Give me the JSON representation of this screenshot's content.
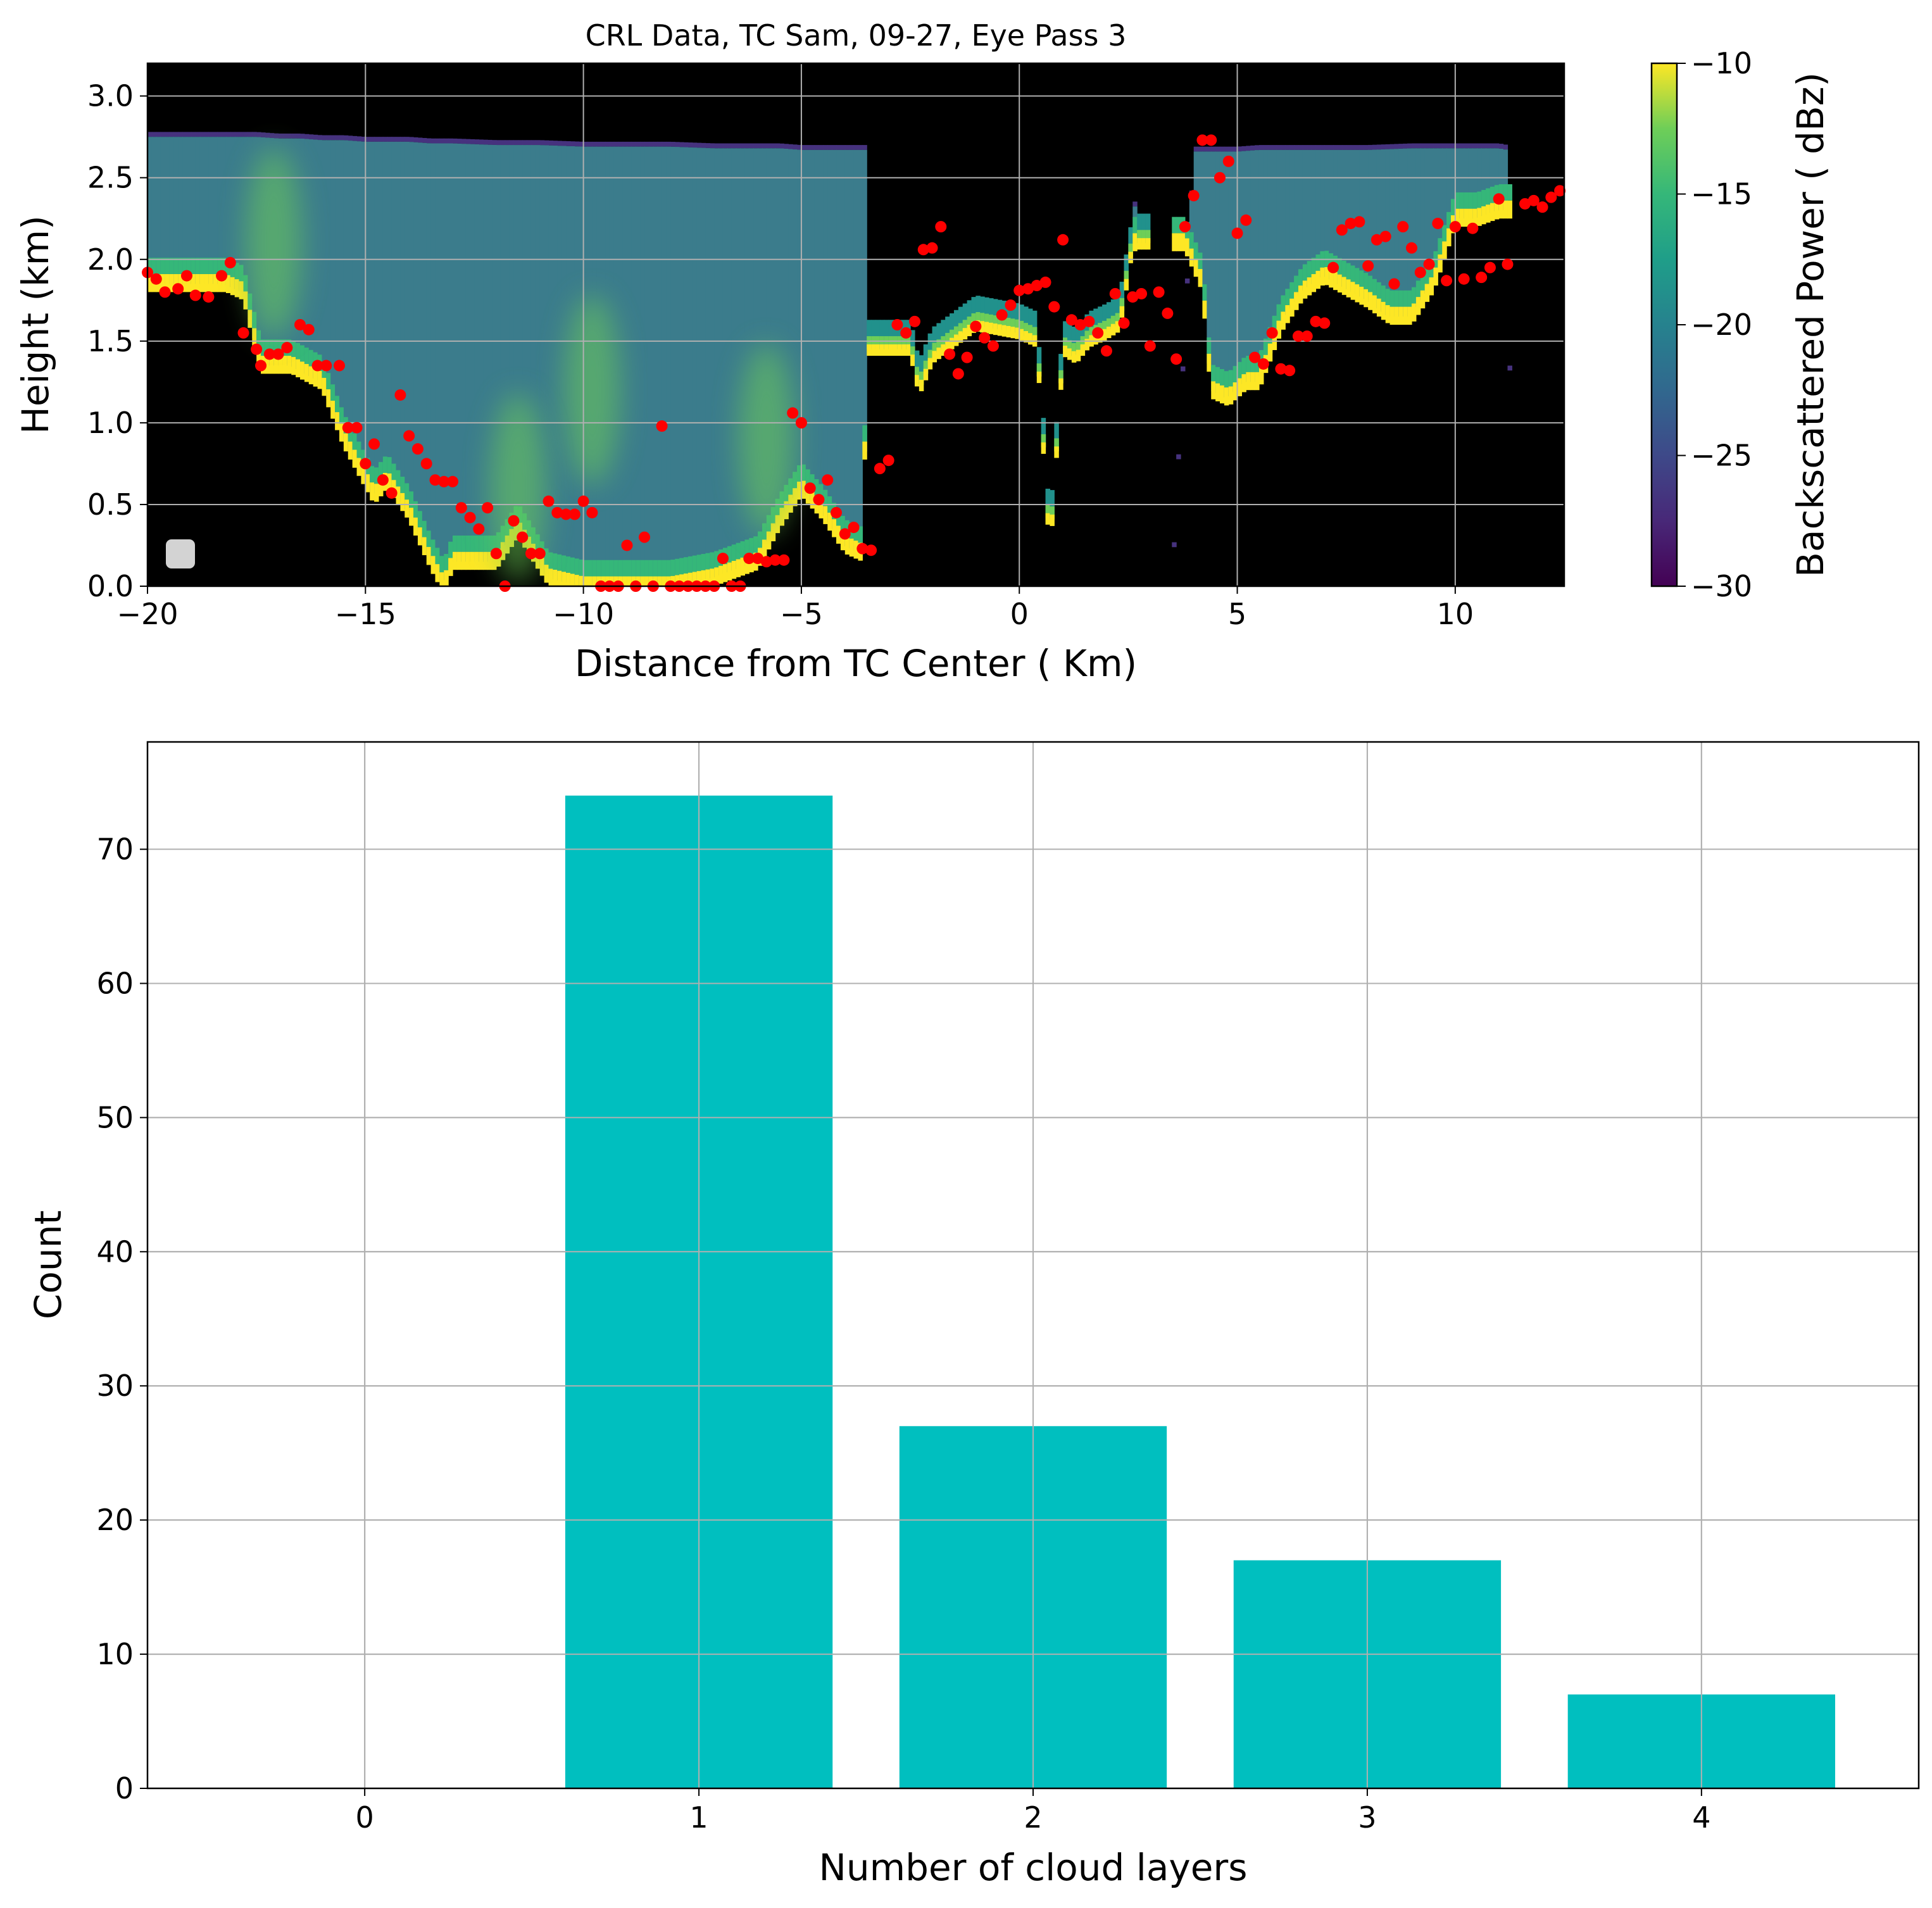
{
  "colors": {
    "bar": "#00bfbf",
    "cloud_top": "#ff0000",
    "grid": "#b0b0b0",
    "background_no_signal": "#000000",
    "legend_marker": "#d3d3d3"
  },
  "chart_data": [
    {
      "type": "heatmap",
      "title": "CRL Data, TC Sam, 09-27, Eye Pass 3",
      "xlabel": "Distance from TC Center ( Km)",
      "ylabel": "Height (km)",
      "xlim": [
        -20,
        12.5
      ],
      "ylim": [
        0,
        3.2
      ],
      "xticks": [
        "−20",
        "−15",
        "−10",
        "−5",
        "0",
        "5",
        "10"
      ],
      "xtick_values": [
        -20,
        -15,
        -10,
        -5,
        0,
        5,
        10
      ],
      "yticks": [
        "0.0",
        "0.5",
        "1.0",
        "1.5",
        "2.0",
        "2.5",
        "3.0"
      ],
      "ytick_values": [
        0,
        0.5,
        1.0,
        1.5,
        2.0,
        2.5,
        3.0
      ],
      "grid": true,
      "colormap": "viridis",
      "colorbar": {
        "label": "Backscattered Power ( dBz)",
        "range": [
          -30,
          -10
        ],
        "ticks": [
          "−30",
          "−25",
          "−20",
          "−15",
          "−10"
        ],
        "tick_values": [
          -30,
          -25,
          -20,
          -15,
          -10
        ]
      },
      "legend": {
        "position": "lower-left",
        "entries": [
          ""
        ]
      },
      "gaps_x": [
        [
          -3.5,
          2.6
        ],
        [
          2.7,
          3.5
        ]
      ],
      "cloud_top_profile": {
        "x": [
          -20,
          -19,
          -18,
          -17.5,
          -17,
          -16.5,
          -16,
          -15.5,
          -15,
          -14.5,
          -14,
          -13.5,
          -13,
          -12,
          -11,
          -10,
          -9,
          -8,
          -7,
          -6,
          -5.5,
          -5,
          -4.5,
          -4,
          -3.6,
          -3.5,
          2.6,
          3.0,
          3.5,
          4.0,
          4.3,
          5,
          5.5,
          6,
          7,
          8,
          9,
          10,
          11,
          11.2,
          11.3,
          12.5
        ],
        "y": [
          2.78,
          2.78,
          2.78,
          2.78,
          2.77,
          2.77,
          2.76,
          2.76,
          2.75,
          2.75,
          2.75,
          2.74,
          2.74,
          2.73,
          2.73,
          2.72,
          2.72,
          2.72,
          2.71,
          2.71,
          2.71,
          2.7,
          2.7,
          2.7,
          2.7,
          2.7,
          2.69,
          0,
          0,
          2.69,
          2.69,
          2.69,
          2.7,
          2.7,
          2.7,
          2.7,
          2.71,
          2.71,
          2.71,
          2.7,
          0,
          0
        ]
      },
      "cloud_base_profile": {
        "x": [
          -20,
          -18.2,
          -17.8,
          -17.4,
          -16.7,
          -16,
          -15.5,
          -15,
          -14.8,
          -14.5,
          -14,
          -13.5,
          -13.2,
          -13,
          -12,
          -11.5,
          -10.8,
          -10,
          -9,
          -8,
          -7,
          -6,
          -5.5,
          -5,
          -4.5,
          -4,
          -3.6,
          -3.5,
          -3.2,
          -2.5,
          -2.3,
          -2,
          -1.5,
          -1,
          0,
          0.4,
          0.7,
          1,
          1.3,
          1.6,
          2,
          2.3,
          2.6,
          3.5,
          3.8,
          4.2,
          4.4,
          4.8,
          5.2,
          5.5,
          6,
          6.5,
          7,
          8,
          8.5,
          9,
          9.5,
          10,
          10.5,
          11,
          11.2
        ],
        "y": [
          1.85,
          1.85,
          1.8,
          1.35,
          1.35,
          1.25,
          0.9,
          0.65,
          0.55,
          0.65,
          0.45,
          0.15,
          0.0,
          0.15,
          0.15,
          0.35,
          0.05,
          0.0,
          0.0,
          0.0,
          0.05,
          0.15,
          0.4,
          0.6,
          0.45,
          0.25,
          0.2,
          1.45,
          1.45,
          1.45,
          1.2,
          1.4,
          1.5,
          1.6,
          1.55,
          1.5,
          0.2,
          1.45,
          1.4,
          1.5,
          1.55,
          1.6,
          2.1,
          2.1,
          2.1,
          1.85,
          1.2,
          1.15,
          1.25,
          1.25,
          1.6,
          1.8,
          1.9,
          1.75,
          1.65,
          1.65,
          1.85,
          2.25,
          2.25,
          2.3,
          2.3
        ]
      },
      "bright_patches": [
        {
          "x": -17.1,
          "y": 2.1,
          "level": -17
        },
        {
          "x": -9.8,
          "y": 1.2,
          "level": -16
        },
        {
          "x": -5.8,
          "y": 0.9,
          "level": -15
        },
        {
          "x": -11.5,
          "y": 0.6,
          "level": -18
        }
      ],
      "cloud_layer_tops": {
        "x": [
          -20,
          -19.8,
          -19.6,
          -19.3,
          -19.1,
          -18.9,
          -18.6,
          -18.3,
          -18.1,
          -17.8,
          -17.5,
          -17.4,
          -17.2,
          -17.0,
          -16.8,
          -16.5,
          -16.3,
          -16.1,
          -15.9,
          -15.6,
          -15.4,
          -15.2,
          -15.0,
          -14.8,
          -14.6,
          -14.4,
          -14.2,
          -14.0,
          -13.8,
          -13.6,
          -13.4,
          -13.2,
          -13.0,
          -12.8,
          -12.6,
          -12.4,
          -12.2,
          -12.0,
          -11.8,
          -11.6,
          -11.4,
          -11.2,
          -11.0,
          -10.8,
          -10.6,
          -10.4,
          -10.2,
          -10.0,
          -9.8,
          -9.6,
          -9.4,
          -9.2,
          -9.0,
          -8.8,
          -8.6,
          -8.4,
          -8.2,
          -8.0,
          -7.8,
          -7.6,
          -7.4,
          -7.2,
          -7.0,
          -6.8,
          -6.6,
          -6.4,
          -6.2,
          -6.0,
          -5.8,
          -5.6,
          -5.4,
          -5.2,
          -5.0,
          -4.8,
          -4.6,
          -4.4,
          -4.2,
          -4.0,
          -3.8,
          -3.6,
          -3.4,
          -3.2,
          -3.0,
          -2.8,
          -2.6,
          -2.4,
          -2.2,
          -2.0,
          -1.8,
          -1.6,
          -1.4,
          -1.2,
          -1.0,
          -0.8,
          -0.6,
          -0.4,
          -0.2,
          0.0,
          0.2,
          0.4,
          0.6,
          0.8,
          1.0,
          1.2,
          1.4,
          1.6,
          1.8,
          2.0,
          2.2,
          2.4,
          2.6,
          2.8,
          3.0,
          3.2,
          3.4,
          3.6,
          3.8,
          4.0,
          4.2,
          4.4,
          4.6,
          4.8,
          5.0,
          5.2,
          5.4,
          5.6,
          5.8,
          6.0,
          6.2,
          6.4,
          6.6,
          6.8,
          7.0,
          7.2,
          7.4,
          7.6,
          7.8,
          8.0,
          8.2,
          8.4,
          8.6,
          8.8,
          9.0,
          9.2,
          9.4,
          9.6,
          9.8,
          10.0,
          10.2,
          10.4,
          10.6,
          10.8,
          11.0,
          11.2,
          11.6,
          11.8,
          12.0,
          12.2,
          12.4
        ],
        "y": [
          1.92,
          1.88,
          1.8,
          1.82,
          1.9,
          1.78,
          1.77,
          1.9,
          1.98,
          1.55,
          1.45,
          1.35,
          1.42,
          1.42,
          1.46,
          1.6,
          1.57,
          1.35,
          1.35,
          1.35,
          0.97,
          0.97,
          0.75,
          0.87,
          0.65,
          0.57,
          1.17,
          0.92,
          0.84,
          0.75,
          0.65,
          0.64,
          0.64,
          0.48,
          0.42,
          0.35,
          0.48,
          0.2,
          0.0,
          0.4,
          0.3,
          0.2,
          0.2,
          0.52,
          0.45,
          0.44,
          0.44,
          0.52,
          0.45,
          0.0,
          0.0,
          0.0,
          0.25,
          0.0,
          0.3,
          0.0,
          0.98,
          0.0,
          0.0,
          0.0,
          0.0,
          0.0,
          0.0,
          0.17,
          0.0,
          0.0,
          0.17,
          0.17,
          0.15,
          0.16,
          0.16,
          1.06,
          1.0,
          0.6,
          0.53,
          0.65,
          0.45,
          0.32,
          0.36,
          0.23,
          0.22,
          0.72,
          0.77,
          1.6,
          1.55,
          1.62,
          2.06,
          2.07,
          2.2,
          1.42,
          1.3,
          1.4,
          1.59,
          1.52,
          1.47,
          1.66,
          1.72,
          1.81,
          1.82,
          1.84,
          1.86,
          1.71,
          2.12,
          1.63,
          1.6,
          1.62,
          1.55,
          1.44,
          1.79,
          1.61,
          1.77,
          1.79,
          1.47,
          1.8,
          1.67,
          1.39,
          2.2,
          2.39,
          2.73,
          2.73,
          2.5,
          2.6,
          2.16,
          2.24,
          1.4,
          1.36,
          1.55,
          1.33,
          1.32,
          1.53,
          1.53,
          1.62,
          1.61,
          1.95,
          2.18,
          2.22,
          2.23,
          1.96,
          2.12,
          2.14,
          1.85,
          2.2,
          2.07,
          1.92,
          1.97,
          2.22,
          1.87,
          2.2,
          1.88,
          2.19,
          1.89,
          1.95,
          2.37,
          1.97,
          2.34,
          2.36,
          2.32,
          2.38,
          2.42,
          2.47,
          2.26,
          2.49,
          2.5,
          2.74,
          2.74,
          2.74,
          2.74
        ]
      }
    },
    {
      "type": "bar",
      "title": "",
      "xlabel": "Number of cloud layers",
      "ylabel": "Count",
      "categories": [
        "0",
        "1",
        "2",
        "3",
        "4"
      ],
      "values": [
        0,
        74,
        27,
        17,
        7
      ],
      "xlim": [
        -0.65,
        4.65
      ],
      "ylim": [
        0,
        78
      ],
      "yticks": [
        "0",
        "10",
        "20",
        "30",
        "40",
        "50",
        "60",
        "70"
      ],
      "ytick_values": [
        0,
        10,
        20,
        30,
        40,
        50,
        60,
        70
      ],
      "grid": true
    }
  ]
}
